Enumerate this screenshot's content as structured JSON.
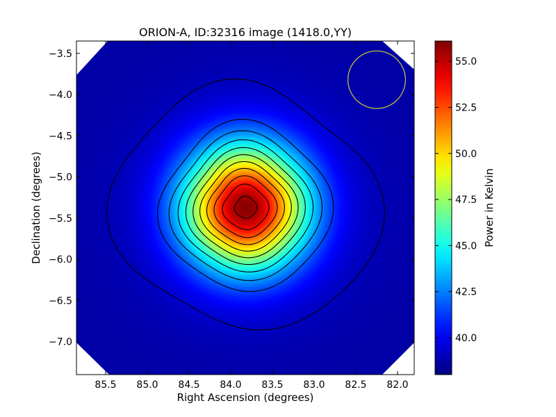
{
  "chart_data": {
    "type": "heatmap",
    "title": "ORION-A, ID:32316 image (1418.0,YY)",
    "xlabel": "Right Ascension (degrees)",
    "ylabel": "Declination (degrees)",
    "colorbar_label": "Power in Kelvin",
    "xlim": [
      85.85,
      81.8
    ],
    "ylim": [
      -7.4,
      -3.35
    ],
    "x_ticks": [
      85.5,
      85.0,
      84.5,
      84.0,
      83.5,
      83.0,
      82.5,
      82.0
    ],
    "x_tick_labels": [
      "85.5",
      "85.0",
      "84.5",
      "84.0",
      "83.5",
      "83.0",
      "82.5",
      "82.0"
    ],
    "y_ticks": [
      -3.5,
      -4.0,
      -4.5,
      -5.0,
      -5.5,
      -6.0,
      -6.5,
      -7.0
    ],
    "y_tick_labels": [
      "−3.5",
      "−4.0",
      "−4.5",
      "−5.0",
      "−5.5",
      "−6.0",
      "−6.5",
      "−7.0"
    ],
    "colorbar_range": [
      38.0,
      56.1
    ],
    "colorbar_ticks": [
      40.0,
      42.5,
      45.0,
      47.5,
      50.0,
      52.5,
      55.0
    ],
    "colorbar_tick_labels": [
      "40.0",
      "42.5",
      "45.0",
      "47.5",
      "50.0",
      "52.5",
      "55.0"
    ],
    "colormap": "jet",
    "peak": {
      "ra": 83.82,
      "dec": -5.37,
      "value": 56.0
    },
    "background_level": 39.3,
    "contour_levels": [
      40.6,
      42.0,
      43.5,
      45.0,
      46.5,
      48.0,
      49.5,
      51.0,
      52.5,
      54.0,
      55.5
    ],
    "beam_circle": {
      "ra": 82.25,
      "dec": -3.82,
      "radius_deg": 0.36,
      "color": "#cccc33"
    },
    "colors": {
      "contour": "#000000",
      "frame": "#000000",
      "background": "#ffffff"
    }
  }
}
